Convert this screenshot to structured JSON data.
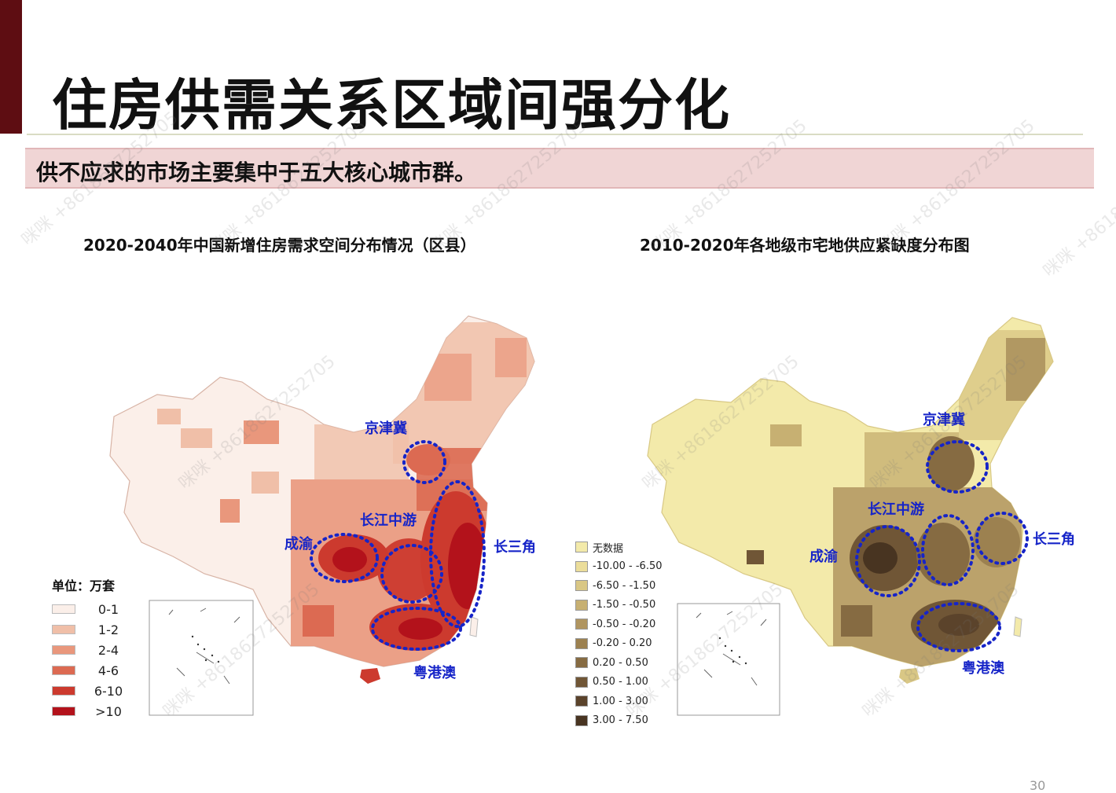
{
  "slide": {
    "title": "住房供需关系区域间强分化",
    "subtitle": "供不应求的市场主要集中于五大核心城市群。",
    "page_number": "30"
  },
  "left_map": {
    "title": "2020-2040年中国新增住房需求空间分布情况（区县）",
    "legend_title": "单位：万套",
    "legend": [
      {
        "label": "0-1",
        "color": "#fbefe9"
      },
      {
        "label": "1-2",
        "color": "#f0bfa8"
      },
      {
        "label": "2-4",
        "color": "#e9977c"
      },
      {
        "label": "4-6",
        "color": "#dc6a52"
      },
      {
        "label": "6-10",
        "color": "#cc3a2e"
      },
      {
        "label": ">10",
        "color": "#b3121b"
      }
    ],
    "regions": [
      "京津冀",
      "长江中游",
      "成渝",
      "长三角",
      "粤港澳"
    ]
  },
  "right_map": {
    "title": "2010-2020年各地级市宅地供应紧缺度分布图",
    "legend": [
      {
        "label": "无数据",
        "color": "#f3eaaa"
      },
      {
        "label": "-10.00 - -6.50",
        "color": "#ebdd9a"
      },
      {
        "label": "-6.50 - -1.50",
        "color": "#d9c785"
      },
      {
        "label": "-1.50 - -0.50",
        "color": "#c7b072"
      },
      {
        "label": "-0.50 - -0.20",
        "color": "#b09560"
      },
      {
        "label": "-0.20 - 0.20",
        "color": "#9c8150"
      },
      {
        "label": "0.20 - 0.50",
        "color": "#866b42"
      },
      {
        "label": "0.50 - 1.00",
        "color": "#705636"
      },
      {
        "label": "1.00 - 3.00",
        "color": "#5b432b"
      },
      {
        "label": "3.00 - 7.50",
        "color": "#483421"
      }
    ],
    "regions": [
      "京津冀",
      "长江中游",
      "成渝",
      "长三角",
      "粤港澳"
    ]
  },
  "watermark_text": "咪咪 +8618627252705"
}
